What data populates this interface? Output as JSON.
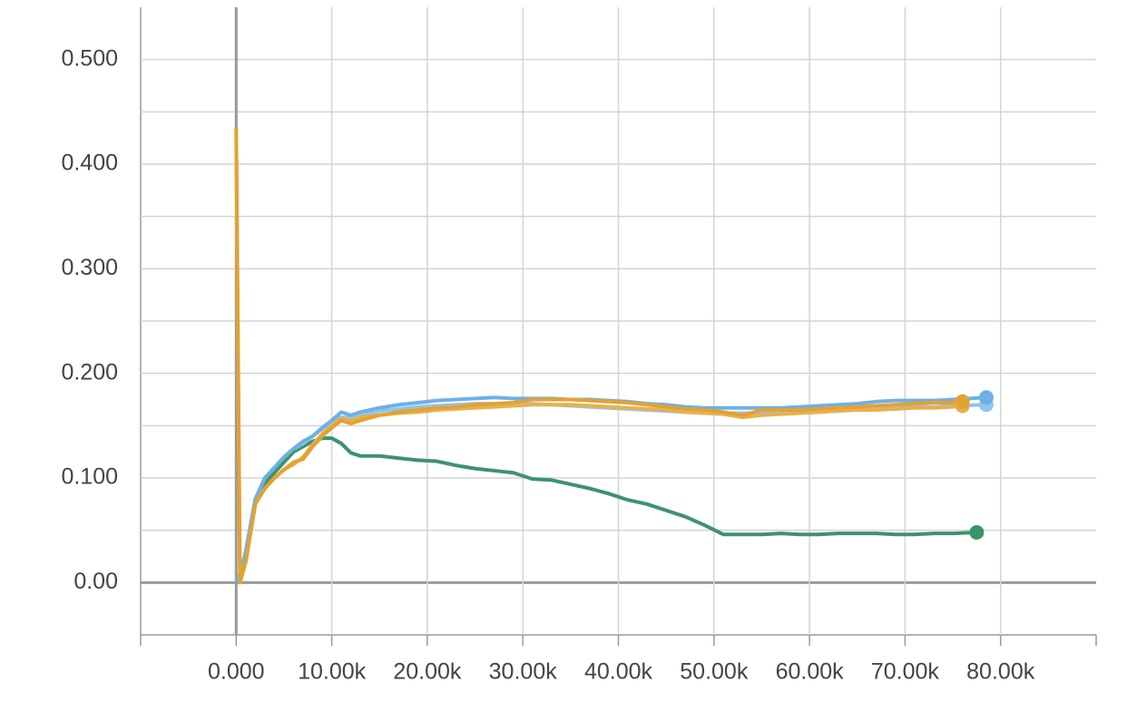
{
  "chart_data": {
    "type": "line",
    "xlim": [
      -10000,
      90000
    ],
    "ylim": [
      -0.05,
      0.55
    ],
    "xticks": [
      {
        "value": 0,
        "label": "0.000"
      },
      {
        "value": 10000,
        "label": "10.00k"
      },
      {
        "value": 20000,
        "label": "20.00k"
      },
      {
        "value": 30000,
        "label": "30.00k"
      },
      {
        "value": 40000,
        "label": "40.00k"
      },
      {
        "value": 50000,
        "label": "50.00k"
      },
      {
        "value": 60000,
        "label": "60.00k"
      },
      {
        "value": 70000,
        "label": "70.00k"
      },
      {
        "value": 80000,
        "label": "80.00k"
      }
    ],
    "yticks": [
      {
        "value": 0,
        "label": "0.00"
      },
      {
        "value": 0.1,
        "label": "0.100"
      },
      {
        "value": 0.2,
        "label": "0.200"
      },
      {
        "value": 0.3,
        "label": "0.300"
      },
      {
        "value": 0.4,
        "label": "0.400"
      },
      {
        "value": 0.5,
        "label": "0.500"
      }
    ],
    "yminor": [
      0.05,
      0.15,
      0.25,
      0.35,
      0.45
    ],
    "grid": true,
    "series": [
      {
        "color": "#3d936b",
        "x": [
          0,
          500,
          1000,
          2000,
          3000,
          4000,
          5000,
          6000,
          7000,
          8000,
          9000,
          10000,
          11000,
          12000,
          13000,
          15000,
          17000,
          19000,
          21000,
          23000,
          25000,
          27000,
          29000,
          31000,
          33000,
          35000,
          37000,
          39000,
          41000,
          43000,
          45000,
          47000,
          49000,
          51000,
          53000,
          55000,
          57000,
          59000,
          61000,
          63000,
          65000,
          67000,
          69000,
          71000,
          73000,
          75000,
          77500
        ],
        "values": [
          0,
          0.005,
          0.02,
          0.075,
          0.095,
          0.105,
          0.115,
          0.125,
          0.13,
          0.135,
          0.138,
          0.138,
          0.133,
          0.124,
          0.121,
          0.121,
          0.119,
          0.117,
          0.116,
          0.112,
          0.109,
          0.107,
          0.105,
          0.099,
          0.098,
          0.094,
          0.09,
          0.085,
          0.079,
          0.075,
          0.069,
          0.063,
          0.055,
          0.046,
          0.046,
          0.046,
          0.047,
          0.046,
          0.046,
          0.047,
          0.047,
          0.047,
          0.046,
          0.046,
          0.047,
          0.047,
          0.048
        ]
      },
      {
        "color": "#8fc6ee",
        "x": [
          0,
          500,
          1000,
          2000,
          3000,
          4000,
          5000,
          6000,
          7000,
          8000,
          9000,
          10000,
          11000,
          12000,
          13000,
          15000,
          17000,
          19000,
          21000,
          23000,
          25000,
          27000,
          29000,
          31000,
          33000,
          35000,
          37000,
          39000,
          41000,
          43000,
          45000,
          47000,
          49000,
          51000,
          53000,
          55000,
          57000,
          59000,
          61000,
          63000,
          65000,
          67000,
          69000,
          71000,
          73000,
          75000,
          78500
        ],
        "values": [
          0,
          0.01,
          0.03,
          0.08,
          0.1,
          0.11,
          0.12,
          0.128,
          0.133,
          0.14,
          0.147,
          0.153,
          0.158,
          0.158,
          0.16,
          0.164,
          0.166,
          0.168,
          0.169,
          0.17,
          0.171,
          0.171,
          0.171,
          0.171,
          0.17,
          0.169,
          0.168,
          0.167,
          0.166,
          0.165,
          0.164,
          0.163,
          0.162,
          0.162,
          0.162,
          0.162,
          0.163,
          0.164,
          0.165,
          0.165,
          0.166,
          0.167,
          0.167,
          0.168,
          0.168,
          0.169,
          0.17
        ]
      },
      {
        "color": "#6eb0e6",
        "x": [
          0,
          500,
          1000,
          2000,
          3000,
          4000,
          5000,
          6000,
          7000,
          8000,
          9000,
          10000,
          11000,
          12000,
          13000,
          15000,
          17000,
          19000,
          21000,
          23000,
          25000,
          27000,
          29000,
          31000,
          33000,
          35000,
          37000,
          39000,
          41000,
          43000,
          45000,
          47000,
          49000,
          51000,
          53000,
          55000,
          57000,
          59000,
          61000,
          63000,
          65000,
          67000,
          69000,
          71000,
          73000,
          75000,
          78500
        ],
        "values": [
          0,
          0.01,
          0.03,
          0.08,
          0.1,
          0.11,
          0.12,
          0.128,
          0.135,
          0.14,
          0.148,
          0.155,
          0.163,
          0.16,
          0.163,
          0.167,
          0.17,
          0.172,
          0.174,
          0.175,
          0.176,
          0.177,
          0.176,
          0.176,
          0.176,
          0.175,
          0.175,
          0.174,
          0.173,
          0.171,
          0.17,
          0.168,
          0.167,
          0.167,
          0.167,
          0.167,
          0.167,
          0.168,
          0.169,
          0.17,
          0.171,
          0.173,
          0.174,
          0.174,
          0.174,
          0.175,
          0.177
        ]
      },
      {
        "color": "#e8b04e",
        "x": [
          0,
          400,
          1000,
          2000,
          3000,
          4000,
          5000,
          6000,
          7000,
          8000,
          9000,
          10000,
          11000,
          12000,
          13000,
          15000,
          17000,
          19000,
          21000,
          23000,
          25000,
          27000,
          29000,
          31000,
          33000,
          35000,
          37000,
          39000,
          41000,
          43000,
          45000,
          47000,
          49000,
          51000,
          53000,
          55000,
          57000,
          59000,
          61000,
          63000,
          65000,
          67000,
          69000,
          71000,
          73000,
          75000,
          76000
        ],
        "values": [
          0.43,
          0,
          0.02,
          0.075,
          0.09,
          0.1,
          0.108,
          0.113,
          0.12,
          0.132,
          0.142,
          0.15,
          0.157,
          0.155,
          0.158,
          0.16,
          0.162,
          0.163,
          0.165,
          0.166,
          0.167,
          0.168,
          0.169,
          0.17,
          0.17,
          0.17,
          0.169,
          0.168,
          0.167,
          0.166,
          0.165,
          0.163,
          0.162,
          0.161,
          0.158,
          0.16,
          0.161,
          0.162,
          0.163,
          0.164,
          0.165,
          0.165,
          0.166,
          0.167,
          0.167,
          0.168,
          0.169
        ]
      },
      {
        "color": "#e3a231",
        "x": [
          0,
          400,
          1000,
          2000,
          3000,
          4000,
          5000,
          6000,
          7000,
          8000,
          9000,
          10000,
          11000,
          12000,
          13000,
          15000,
          17000,
          19000,
          21000,
          23000,
          25000,
          27000,
          29000,
          31000,
          33000,
          35000,
          37000,
          39000,
          41000,
          43000,
          45000,
          47000,
          49000,
          51000,
          53000,
          55000,
          57000,
          59000,
          61000,
          63000,
          65000,
          67000,
          69000,
          71000,
          73000,
          75000,
          76000
        ],
        "values": [
          0.435,
          0,
          0.02,
          0.075,
          0.09,
          0.1,
          0.108,
          0.115,
          0.118,
          0.13,
          0.14,
          0.148,
          0.155,
          0.152,
          0.155,
          0.16,
          0.163,
          0.165,
          0.167,
          0.168,
          0.17,
          0.171,
          0.172,
          0.175,
          0.175,
          0.175,
          0.174,
          0.173,
          0.172,
          0.17,
          0.168,
          0.166,
          0.165,
          0.163,
          0.16,
          0.165,
          0.165,
          0.165,
          0.166,
          0.167,
          0.168,
          0.169,
          0.17,
          0.171,
          0.172,
          0.172,
          0.173
        ]
      }
    ]
  }
}
